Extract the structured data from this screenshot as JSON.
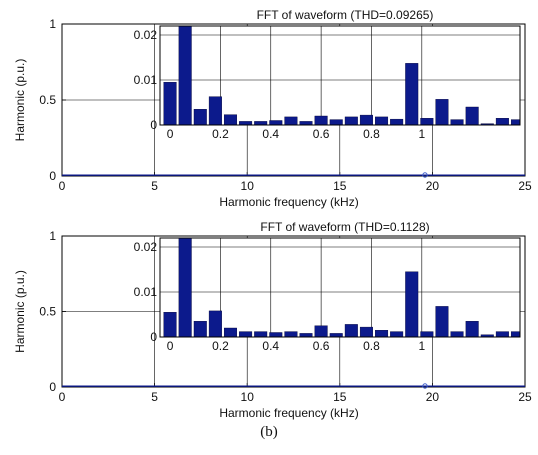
{
  "caption": "(b)",
  "colors": {
    "bar": "#0c1a8c",
    "axis": "#000000",
    "grid": "#000000",
    "text": "#111111",
    "baseline_marker": "#3a5acb"
  },
  "chart_data": [
    {
      "type": "bar",
      "title": "FFT of waveform (THD=0.09265)",
      "xlabel": "Harmonic frequency (kHz)",
      "ylabel": "Harmonic (p.u.)",
      "xlim": [
        0,
        25
      ],
      "ylim": [
        0,
        1
      ],
      "xticks": [
        "0",
        "5",
        "10",
        "15",
        "20",
        "25"
      ],
      "yticks": [
        "0",
        "0.5",
        "1"
      ],
      "grid": true,
      "inset": {
        "xlim": [
          -0.04,
          1.39
        ],
        "ylim": [
          0,
          0.022
        ],
        "xticks": [
          "0",
          "0.2",
          "0.4",
          "0.6",
          "0.8",
          "1"
        ],
        "yticks": [
          "0",
          "0.01",
          "0.02"
        ],
        "grid": true,
        "bar_width": 0.05,
        "x": [
          0.0,
          0.06,
          0.12,
          0.18,
          0.24,
          0.3,
          0.36,
          0.42,
          0.48,
          0.54,
          0.6,
          0.66,
          0.72,
          0.78,
          0.84,
          0.9,
          0.96,
          1.02,
          1.08,
          1.14,
          1.2,
          1.26,
          1.32,
          1.38
        ],
        "values": [
          0.0095,
          0.03,
          0.0035,
          0.0063,
          0.0023,
          0.0008,
          0.0008,
          0.001,
          0.0018,
          0.0008,
          0.002,
          0.0012,
          0.0018,
          0.0022,
          0.0018,
          0.0013,
          0.0137,
          0.0015,
          0.0057,
          0.0012,
          0.004,
          0.0003,
          0.0015,
          0.0012
        ]
      }
    },
    {
      "type": "bar",
      "title": "FFT of waveform (THD=0.1128)",
      "xlabel": "Harmonic frequency (kHz)",
      "ylabel": "Harmonic (p.u.)",
      "xlim": [
        0,
        25
      ],
      "ylim": [
        0,
        1
      ],
      "xticks": [
        "0",
        "5",
        "10",
        "15",
        "20",
        "25"
      ],
      "yticks": [
        "0",
        "0.5",
        "1"
      ],
      "grid": true,
      "inset": {
        "xlim": [
          -0.04,
          1.39
        ],
        "ylim": [
          0,
          0.022
        ],
        "xticks": [
          "0",
          "0.2",
          "0.4",
          "0.6",
          "0.8",
          "1"
        ],
        "yticks": [
          "0",
          "0.01",
          "0.02"
        ],
        "grid": true,
        "bar_width": 0.05,
        "x": [
          0.0,
          0.06,
          0.12,
          0.18,
          0.24,
          0.3,
          0.36,
          0.42,
          0.48,
          0.54,
          0.6,
          0.66,
          0.72,
          0.78,
          0.84,
          0.9,
          0.96,
          1.02,
          1.08,
          1.14,
          1.2,
          1.26,
          1.32,
          1.38
        ],
        "values": [
          0.0055,
          0.03,
          0.0035,
          0.0058,
          0.002,
          0.0012,
          0.0012,
          0.001,
          0.0012,
          0.0008,
          0.0025,
          0.0008,
          0.0028,
          0.0022,
          0.0015,
          0.0012,
          0.0145,
          0.0012,
          0.0068,
          0.0012,
          0.0035,
          0.0005,
          0.0012,
          0.0012
        ]
      }
    }
  ]
}
